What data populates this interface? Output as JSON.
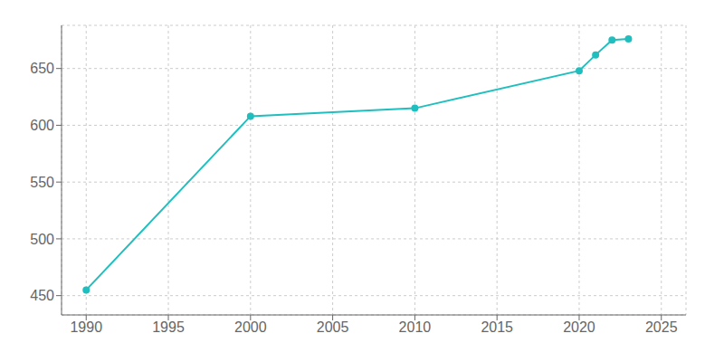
{
  "chart_data": {
    "type": "line",
    "x": [
      1990,
      2000,
      2010,
      2020,
      2021,
      2022,
      2023
    ],
    "values": [
      455,
      608,
      615,
      648,
      662,
      675,
      676
    ],
    "color": "#20BFBF",
    "marker": "o",
    "xlim": [
      1988.5,
      2026.5
    ],
    "ylim": [
      433,
      688
    ],
    "xticks": [
      1990,
      1995,
      2000,
      2005,
      2010,
      2015,
      2020,
      2025
    ],
    "yticks": [
      450,
      500,
      550,
      600,
      650
    ],
    "grid": true
  }
}
